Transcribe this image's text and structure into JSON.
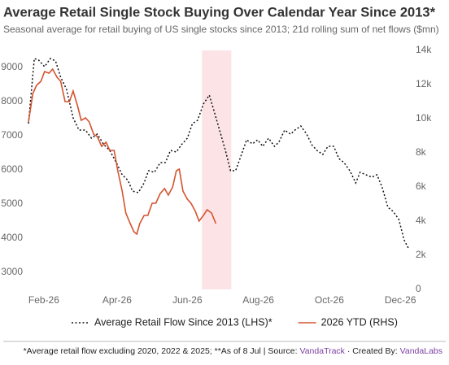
{
  "chart_data": {
    "type": "line",
    "title": "Average Retail Single Stock Buying Over Calendar Year Since 2013*",
    "subtitle": "Seasonal average for retail buying of US single stocks since 2013; 21d rolling sum of net flows ($mn)",
    "xlim": [
      0,
      52
    ],
    "xticks": [
      {
        "value": 2.1,
        "label": "Feb-26"
      },
      {
        "value": 12.1,
        "label": "Apr-26"
      },
      {
        "value": 21.7,
        "label": "Jun-26"
      },
      {
        "value": 31.4,
        "label": "Aug-26"
      },
      {
        "value": 41.1,
        "label": "Oct-26"
      },
      {
        "value": 50.8,
        "label": "Dec-26"
      }
    ],
    "ylim": [
      2500,
      9500
    ],
    "yticks": [
      3000,
      4000,
      5000,
      6000,
      7000,
      8000,
      9000
    ],
    "y2lim": [
      0,
      14000
    ],
    "y2ticks": [
      0,
      {
        "value": 2000,
        "label": "2k"
      },
      {
        "value": 4000,
        "label": "4k"
      },
      {
        "value": 6000,
        "label": "6k"
      },
      {
        "value": 8000,
        "label": "8k"
      },
      {
        "value": 10000,
        "label": "10k"
      },
      {
        "value": 12000,
        "label": "12k"
      },
      {
        "value": 14000,
        "label": "14k"
      }
    ],
    "highlight": {
      "xlim": [
        23.7,
        27.7
      ],
      "color": "#fbe3e6"
    },
    "series": [
      {
        "name": "Average Retail Flow Since 2013 (LHS)*",
        "color": "#111111",
        "dash": "dotted",
        "axis": "y",
        "x": [
          0,
          0.8,
          1.4,
          2.2,
          3,
          3.7,
          4.4,
          5.2,
          6.1,
          6.9,
          7.8,
          8.6,
          9.4,
          10.3,
          11.1,
          12,
          12.8,
          13.6,
          14.2,
          15,
          15.8,
          16.4,
          17.2,
          18,
          18.7,
          19.4,
          20.2,
          20.9,
          21.7,
          22.4,
          23.1,
          23.9,
          24.7,
          25.3,
          26.1,
          26.9,
          27.6,
          28.3,
          29.1,
          29.8,
          30.6,
          31.3,
          32,
          32.8,
          33.6,
          34.2,
          35,
          35.8,
          36.4,
          37.2,
          38,
          38.7,
          39.4,
          40.2,
          40.9,
          41.7,
          42.4,
          43.1,
          43.9,
          44.7,
          45.3,
          46.1,
          46.9,
          47.6,
          48.3,
          49.1,
          49.8,
          50.6,
          51.3,
          52
        ],
        "values": [
          7357,
          9262,
          9214,
          9024,
          9262,
          9190,
          8714,
          8357,
          7524,
          7167,
          7167,
          6929,
          7048,
          6738,
          6571,
          6214,
          5857,
          5690,
          5381,
          5333,
          5619,
          5976,
          5929,
          6214,
          6214,
          6571,
          6524,
          6738,
          6929,
          7357,
          7452,
          7929,
          8190,
          7762,
          7167,
          6571,
          5976,
          5976,
          6452,
          6881,
          6762,
          6881,
          6690,
          6929,
          6690,
          6810,
          7167,
          7048,
          7167,
          7286,
          7048,
          6738,
          6571,
          6452,
          6690,
          6690,
          6333,
          6214,
          5976,
          5619,
          5929,
          5857,
          5786,
          5857,
          5500,
          4905,
          4786,
          4548,
          3952,
          3667
        ]
      },
      {
        "name": "2026 YTD (RHS)",
        "color": "#d4532f",
        "dash": "solid",
        "axis": "y2",
        "x": [
          0,
          0.6,
          1.1,
          1.7,
          2.2,
          2.8,
          3.3,
          3.9,
          4.4,
          5,
          5.6,
          6.1,
          6.7,
          7.2,
          7.8,
          8.3,
          8.9,
          9.4,
          10,
          10.6,
          11.1,
          11.7,
          12.2,
          12.8,
          13.3,
          13.9,
          14.4,
          14.8,
          15.2,
          15.8,
          16.3,
          16.9,
          17.4,
          18,
          18.6,
          19.1,
          19.7,
          20.2,
          20.6,
          21.1,
          21.7,
          22.2,
          22.8,
          23.3,
          23.9,
          24.4,
          25,
          25.6
        ],
        "values": [
          9810,
          11476,
          11952,
          12190,
          12762,
          12667,
          12905,
          12429,
          12190,
          11000,
          11000,
          11619,
          10762,
          9905,
          10048,
          9810,
          9095,
          8952,
          8381,
          8619,
          8143,
          8143,
          6952,
          5762,
          4476,
          3857,
          3381,
          3238,
          3857,
          4333,
          4333,
          5048,
          5048,
          5619,
          5905,
          5524,
          6000,
          6952,
          7048,
          5762,
          5286,
          5048,
          4571,
          4000,
          4333,
          4667,
          4476,
          3857
        ]
      }
    ],
    "footnote": [
      "*Average retail flow excluding 2020, 2022 & 2025; **As of 8 Jul | Source: ",
      "VandaTrack",
      " · Created By: ",
      "VandaLabs"
    ]
  }
}
